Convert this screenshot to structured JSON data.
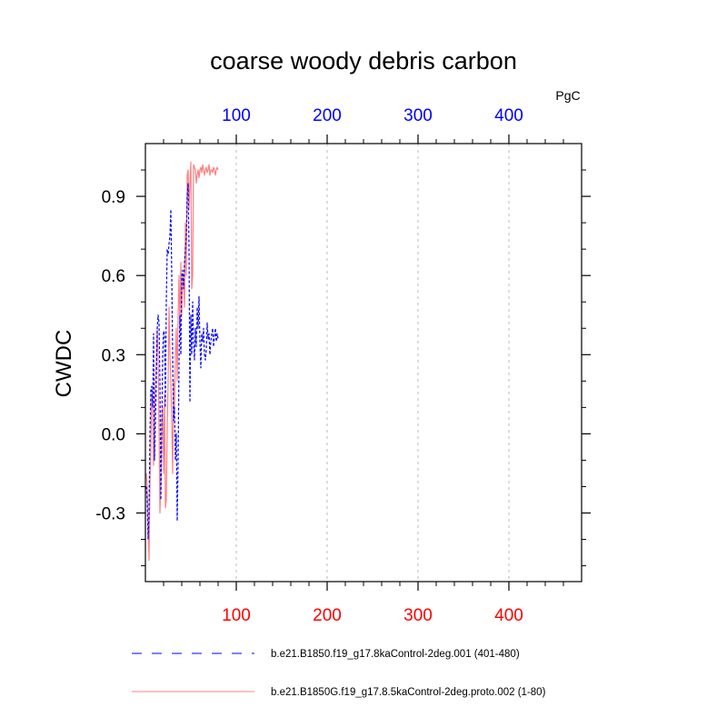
{
  "chart_data": {
    "type": "line",
    "title": "coarse woody debris carbon",
    "ylabel": "CWDC",
    "units_label": "PgC",
    "xlim": [
      0,
      480
    ],
    "ylim": [
      -0.56,
      1.1
    ],
    "x_ticks": [
      100,
      200,
      300,
      400
    ],
    "x_tick_labels": [
      "100",
      "200",
      "300",
      "400"
    ],
    "y_ticks": [
      -0.3,
      0.0,
      0.3,
      0.6,
      0.9
    ],
    "y_tick_labels": [
      "-0.3",
      "0.0",
      "0.3",
      "0.6",
      "0.9"
    ],
    "grid": "vertical dashed at major x ticks",
    "legend_position": "bottom",
    "colors": {
      "series1": "#0000ff",
      "series2": "#ff8080",
      "top_axis_labels": "#0000ff",
      "bottom_axis_labels": "#ff0000"
    },
    "series": [
      {
        "name": "b.e21.B1850.f19_g17.8kaControl-2deg.001 (401-480)",
        "style": "dashed",
        "x": [
          1,
          2,
          3,
          4,
          5,
          6,
          7,
          8,
          9,
          10,
          11,
          12,
          13,
          14,
          15,
          16,
          17,
          18,
          19,
          20,
          21,
          22,
          23,
          24,
          25,
          26,
          27,
          28,
          29,
          30,
          31,
          32,
          33,
          34,
          35,
          36,
          37,
          38,
          39,
          40,
          41,
          42,
          43,
          44,
          45,
          46,
          47,
          48,
          49,
          50,
          51,
          52,
          53,
          54,
          55,
          56,
          57,
          58,
          59,
          60,
          61,
          62,
          63,
          64,
          65,
          66,
          67,
          68,
          69,
          70,
          71,
          72,
          73,
          74,
          75,
          76,
          77,
          78,
          79,
          80
        ],
        "y": [
          -0.2,
          -0.25,
          -0.4,
          -0.3,
          0.0,
          0.17,
          0.18,
          0.1,
          0.38,
          -0.1,
          0.05,
          0.2,
          0.4,
          0.45,
          0.42,
          0.2,
          -0.25,
          0.0,
          0.3,
          0.39,
          0.38,
          0.1,
          0.5,
          0.7,
          0.68,
          0.72,
          0.75,
          0.85,
          0.6,
          0.3,
          0.05,
          0.1,
          -0.1,
          0.0,
          -0.33,
          -0.1,
          0.28,
          0.45,
          0.3,
          0.6,
          0.62,
          0.55,
          0.65,
          0.7,
          0.75,
          0.9,
          0.95,
          0.7,
          0.12,
          0.45,
          0.3,
          0.5,
          0.35,
          0.28,
          0.4,
          0.33,
          0.48,
          0.4,
          0.52,
          0.35,
          0.25,
          0.38,
          0.35,
          0.4,
          0.3,
          0.28,
          0.32,
          0.42,
          0.36,
          0.38,
          0.3,
          0.35,
          0.38,
          0.4,
          0.33,
          0.37,
          0.4,
          0.35,
          0.38,
          0.36
        ]
      },
      {
        "name": "b.e21.B1850G.f19_g17.8.5kaControl-2deg.proto.002 (1-80)",
        "style": "solid",
        "x": [
          1,
          2,
          3,
          4,
          5,
          6,
          7,
          8,
          9,
          10,
          11,
          12,
          13,
          14,
          15,
          16,
          17,
          18,
          19,
          20,
          21,
          22,
          23,
          24,
          25,
          26,
          27,
          28,
          29,
          30,
          31,
          32,
          33,
          34,
          35,
          36,
          37,
          38,
          39,
          40,
          41,
          42,
          43,
          44,
          45,
          46,
          47,
          48,
          49,
          50,
          51,
          52,
          53,
          54,
          55,
          56,
          57,
          58,
          59,
          60,
          61,
          62,
          63,
          64,
          65,
          66,
          67,
          68,
          69,
          70,
          71,
          72,
          73,
          74,
          75,
          76,
          77,
          78,
          79,
          80
        ],
        "y": [
          -0.15,
          -0.2,
          -0.35,
          -0.48,
          -0.2,
          -0.05,
          0.15,
          0.1,
          -0.12,
          0.05,
          0.2,
          0.28,
          0.4,
          0.3,
          0.02,
          -0.3,
          -0.18,
          0.05,
          0.1,
          -0.15,
          0.15,
          -0.28,
          -0.25,
          0.02,
          0.2,
          0.48,
          0.3,
          0.2,
          0.05,
          -0.15,
          0.2,
          0.1,
          0.3,
          0.4,
          0.2,
          0.45,
          0.6,
          0.4,
          0.65,
          0.45,
          0.6,
          0.58,
          0.48,
          0.8,
          0.6,
          0.98,
          1.0,
          0.85,
          0.95,
          1.03,
          0.55,
          0.6,
          1.02,
          1.01,
          1.0,
          0.95,
          0.98,
          1.0,
          0.97,
          1.0,
          1.01,
          0.99,
          1.02,
          1.0,
          0.98,
          1.0,
          1.01,
          0.99,
          1.0,
          1.02,
          0.98,
          1.0,
          1.0,
          0.99,
          1.01,
          1.0,
          0.98,
          1.0,
          1.01,
          1.0
        ]
      }
    ]
  }
}
